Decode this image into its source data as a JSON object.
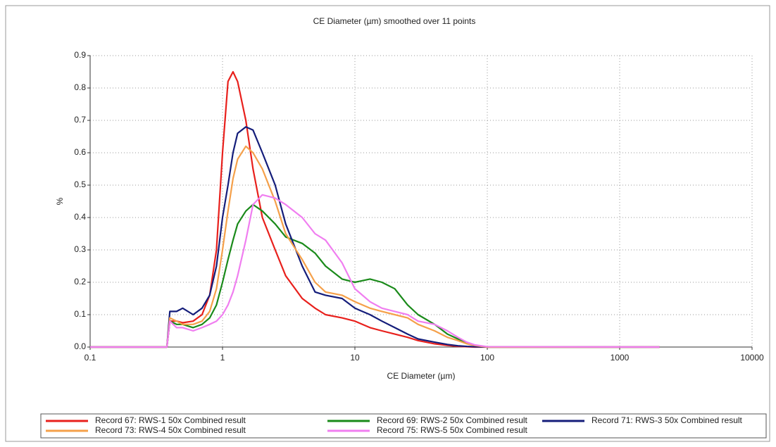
{
  "chart_data": {
    "type": "line",
    "title": "CE Diameter (µm) smoothed over 11 points",
    "x_label": "CE Diameter (µm)",
    "y_label": "%",
    "x_scale": "log",
    "grid": true,
    "legend_position": "bottom",
    "x": [
      0.1,
      0.38,
      0.4,
      0.45,
      0.5,
      0.6,
      0.7,
      0.8,
      0.9,
      1.0,
      1.1,
      1.2,
      1.3,
      1.5,
      1.7,
      2,
      2.5,
      3,
      4,
      5,
      6,
      8,
      10,
      13,
      16,
      20,
      25,
      30,
      40,
      50,
      60,
      70,
      80,
      100,
      2000
    ],
    "series": [
      {
        "name": "Record 67: RWS-1 50x Combined result",
        "color": "#e8201c",
        "values": [
          0,
          0,
          0.08,
          0.08,
          0.075,
          0.08,
          0.1,
          0.16,
          0.3,
          0.6,
          0.82,
          0.85,
          0.82,
          0.7,
          0.55,
          0.4,
          0.3,
          0.22,
          0.15,
          0.12,
          0.1,
          0.09,
          0.08,
          0.06,
          0.05,
          0.04,
          0.03,
          0.02,
          0.01,
          0.005,
          0.002,
          0.001,
          0,
          0,
          0
        ]
      },
      {
        "name": "Record 69: RWS-2 50x Combined result",
        "color": "#1a8a1a",
        "values": [
          0,
          0,
          0.08,
          0.07,
          0.07,
          0.06,
          0.07,
          0.09,
          0.13,
          0.2,
          0.27,
          0.33,
          0.38,
          0.42,
          0.44,
          0.42,
          0.38,
          0.34,
          0.32,
          0.29,
          0.25,
          0.21,
          0.2,
          0.21,
          0.2,
          0.18,
          0.13,
          0.1,
          0.07,
          0.04,
          0.025,
          0.012,
          0.006,
          0,
          0
        ]
      },
      {
        "name": "Record 71: RWS-3 50x Combined result",
        "color": "#141d7a",
        "values": [
          0,
          0,
          0.11,
          0.11,
          0.12,
          0.1,
          0.12,
          0.16,
          0.25,
          0.4,
          0.5,
          0.6,
          0.66,
          0.68,
          0.67,
          0.6,
          0.5,
          0.38,
          0.25,
          0.17,
          0.16,
          0.15,
          0.12,
          0.1,
          0.08,
          0.06,
          0.04,
          0.025,
          0.015,
          0.008,
          0.004,
          0.002,
          0.001,
          0,
          0
        ]
      },
      {
        "name": "Record 73: RWS-4 50x Combined result",
        "color": "#f5a04a",
        "values": [
          0,
          0,
          0.09,
          0.08,
          0.07,
          0.07,
          0.08,
          0.11,
          0.18,
          0.3,
          0.42,
          0.52,
          0.58,
          0.62,
          0.6,
          0.55,
          0.45,
          0.35,
          0.27,
          0.2,
          0.17,
          0.16,
          0.14,
          0.12,
          0.11,
          0.1,
          0.09,
          0.07,
          0.05,
          0.03,
          0.02,
          0.01,
          0.005,
          0,
          0
        ]
      },
      {
        "name": "Record 75: RWS-5 50x Combined result",
        "color": "#f07ef0",
        "values": [
          0,
          0,
          0.08,
          0.06,
          0.06,
          0.05,
          0.06,
          0.07,
          0.08,
          0.1,
          0.13,
          0.17,
          0.22,
          0.33,
          0.44,
          0.47,
          0.46,
          0.44,
          0.4,
          0.35,
          0.33,
          0.26,
          0.18,
          0.14,
          0.12,
          0.11,
          0.1,
          0.08,
          0.07,
          0.05,
          0.03,
          0.015,
          0.007,
          0.001,
          0
        ]
      }
    ],
    "xlim": [
      0.1,
      10000
    ],
    "xticks": [
      0.1,
      1,
      10,
      100,
      1000,
      10000
    ],
    "ylim": [
      0,
      0.9
    ],
    "yticks": [
      {
        "value": 0,
        "label": "0.0"
      },
      0.1,
      0.2,
      0.3,
      0.4,
      0.5,
      0.6,
      0.7,
      0.8,
      0.9
    ]
  }
}
